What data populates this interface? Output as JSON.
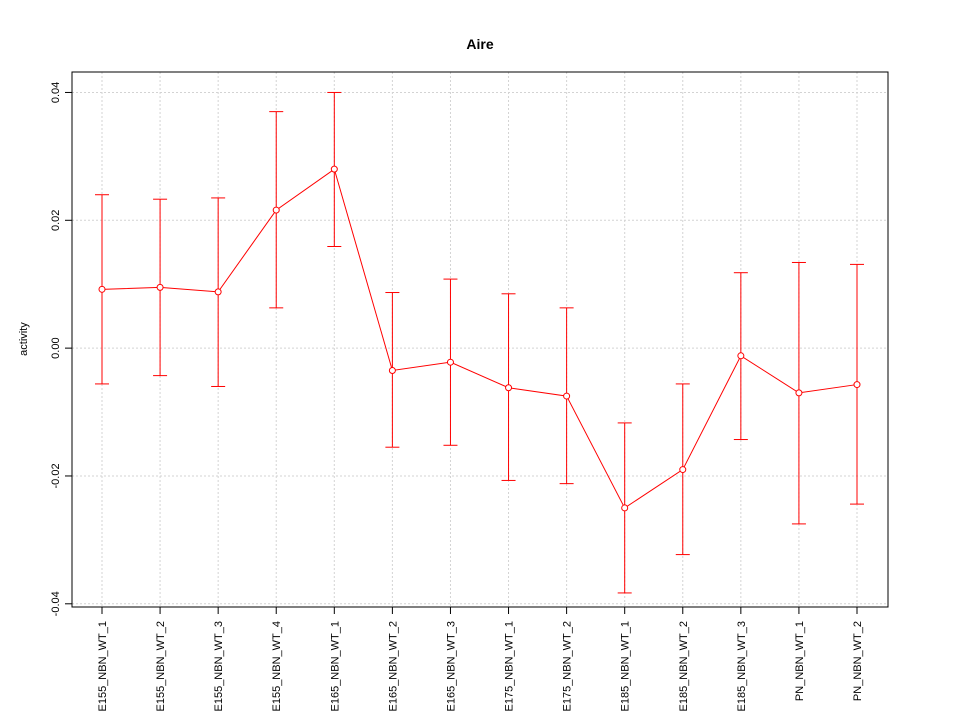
{
  "chart_data": {
    "type": "line",
    "title": "Aire",
    "xlabel": "",
    "ylabel": "activity",
    "categories": [
      "E155_NBN_WT_1",
      "E155_NBN_WT_2",
      "E155_NBN_WT_3",
      "E155_NBN_WT_4",
      "E165_NBN_WT_1",
      "E165_NBN_WT_2",
      "E165_NBN_WT_3",
      "E175_NBN_WT_1",
      "E175_NBN_WT_2",
      "E185_NBN_WT_1",
      "E185_NBN_WT_2",
      "E185_NBN_WT_3",
      "PN_NBN_WT_1",
      "PN_NBN_WT_2"
    ],
    "series": [
      {
        "values": [
          0.0092,
          0.0095,
          0.0088,
          0.0216,
          0.028,
          -0.0035,
          -0.0022,
          -0.0062,
          -0.0075,
          -0.025,
          -0.019,
          -0.0012,
          -0.007,
          -0.0057
        ],
        "upper": [
          0.024,
          0.0233,
          0.0235,
          0.037,
          0.04,
          0.0087,
          0.0108,
          0.0085,
          0.0063,
          -0.0117,
          -0.0056,
          0.0118,
          0.0134,
          0.0131
        ],
        "lower": [
          -0.0056,
          -0.0043,
          -0.006,
          0.0063,
          0.0159,
          -0.0155,
          -0.0152,
          -0.0207,
          -0.0212,
          -0.0383,
          -0.0323,
          -0.0143,
          -0.0275,
          -0.0244
        ],
        "color": "#ff0000"
      }
    ],
    "y_ticks": [
      -0.04,
      -0.02,
      0.0,
      0.02,
      0.04
    ],
    "y_tick_labels": [
      "-0.04",
      "-0.02",
      "0.00",
      "0.02",
      "0.04"
    ],
    "ylim": [
      -0.0405,
      0.0432
    ],
    "grid": true,
    "grid_color": "#d3d3d3"
  }
}
